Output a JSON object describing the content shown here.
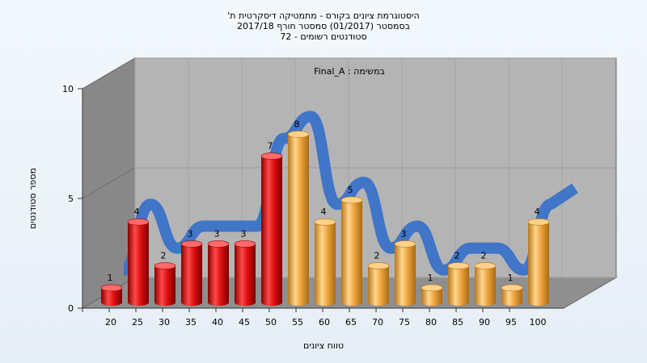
{
  "chart_data": {
    "type": "bar",
    "title_lines": [
      "היסטוגרמת ציונים בקורס - מתמטיקה דיסקרטית ת'",
      "בסמסטר  (01/2017)  סמסטר חורף 2017/18",
      "סטודנטים רשומים - 72"
    ],
    "annotation": "במשימה : Final_A",
    "xlabel": "טווח ציונים",
    "ylabel": "מספר סטודנטים",
    "categories": [
      "20",
      "25",
      "30",
      "35",
      "40",
      "45",
      "50",
      "55",
      "60",
      "65",
      "70",
      "75",
      "80",
      "85",
      "90",
      "95",
      "100"
    ],
    "values": [
      1,
      4,
      2,
      3,
      3,
      3,
      7,
      8,
      4,
      5,
      2,
      3,
      1,
      2,
      2,
      1,
      4
    ],
    "data_labels": [
      "1",
      "4",
      "2",
      "3",
      "3",
      "3",
      "7",
      "8",
      "4",
      "5",
      "2",
      "3",
      "1",
      "2",
      "2",
      "1",
      "4"
    ],
    "y_ticks": [
      "0",
      "5",
      "10"
    ],
    "ylim": [
      0,
      10
    ],
    "fail_color": "#e01010",
    "pass_color": "#f0a838",
    "curve_color": "#3a72c8",
    "fail_count": 7
  }
}
